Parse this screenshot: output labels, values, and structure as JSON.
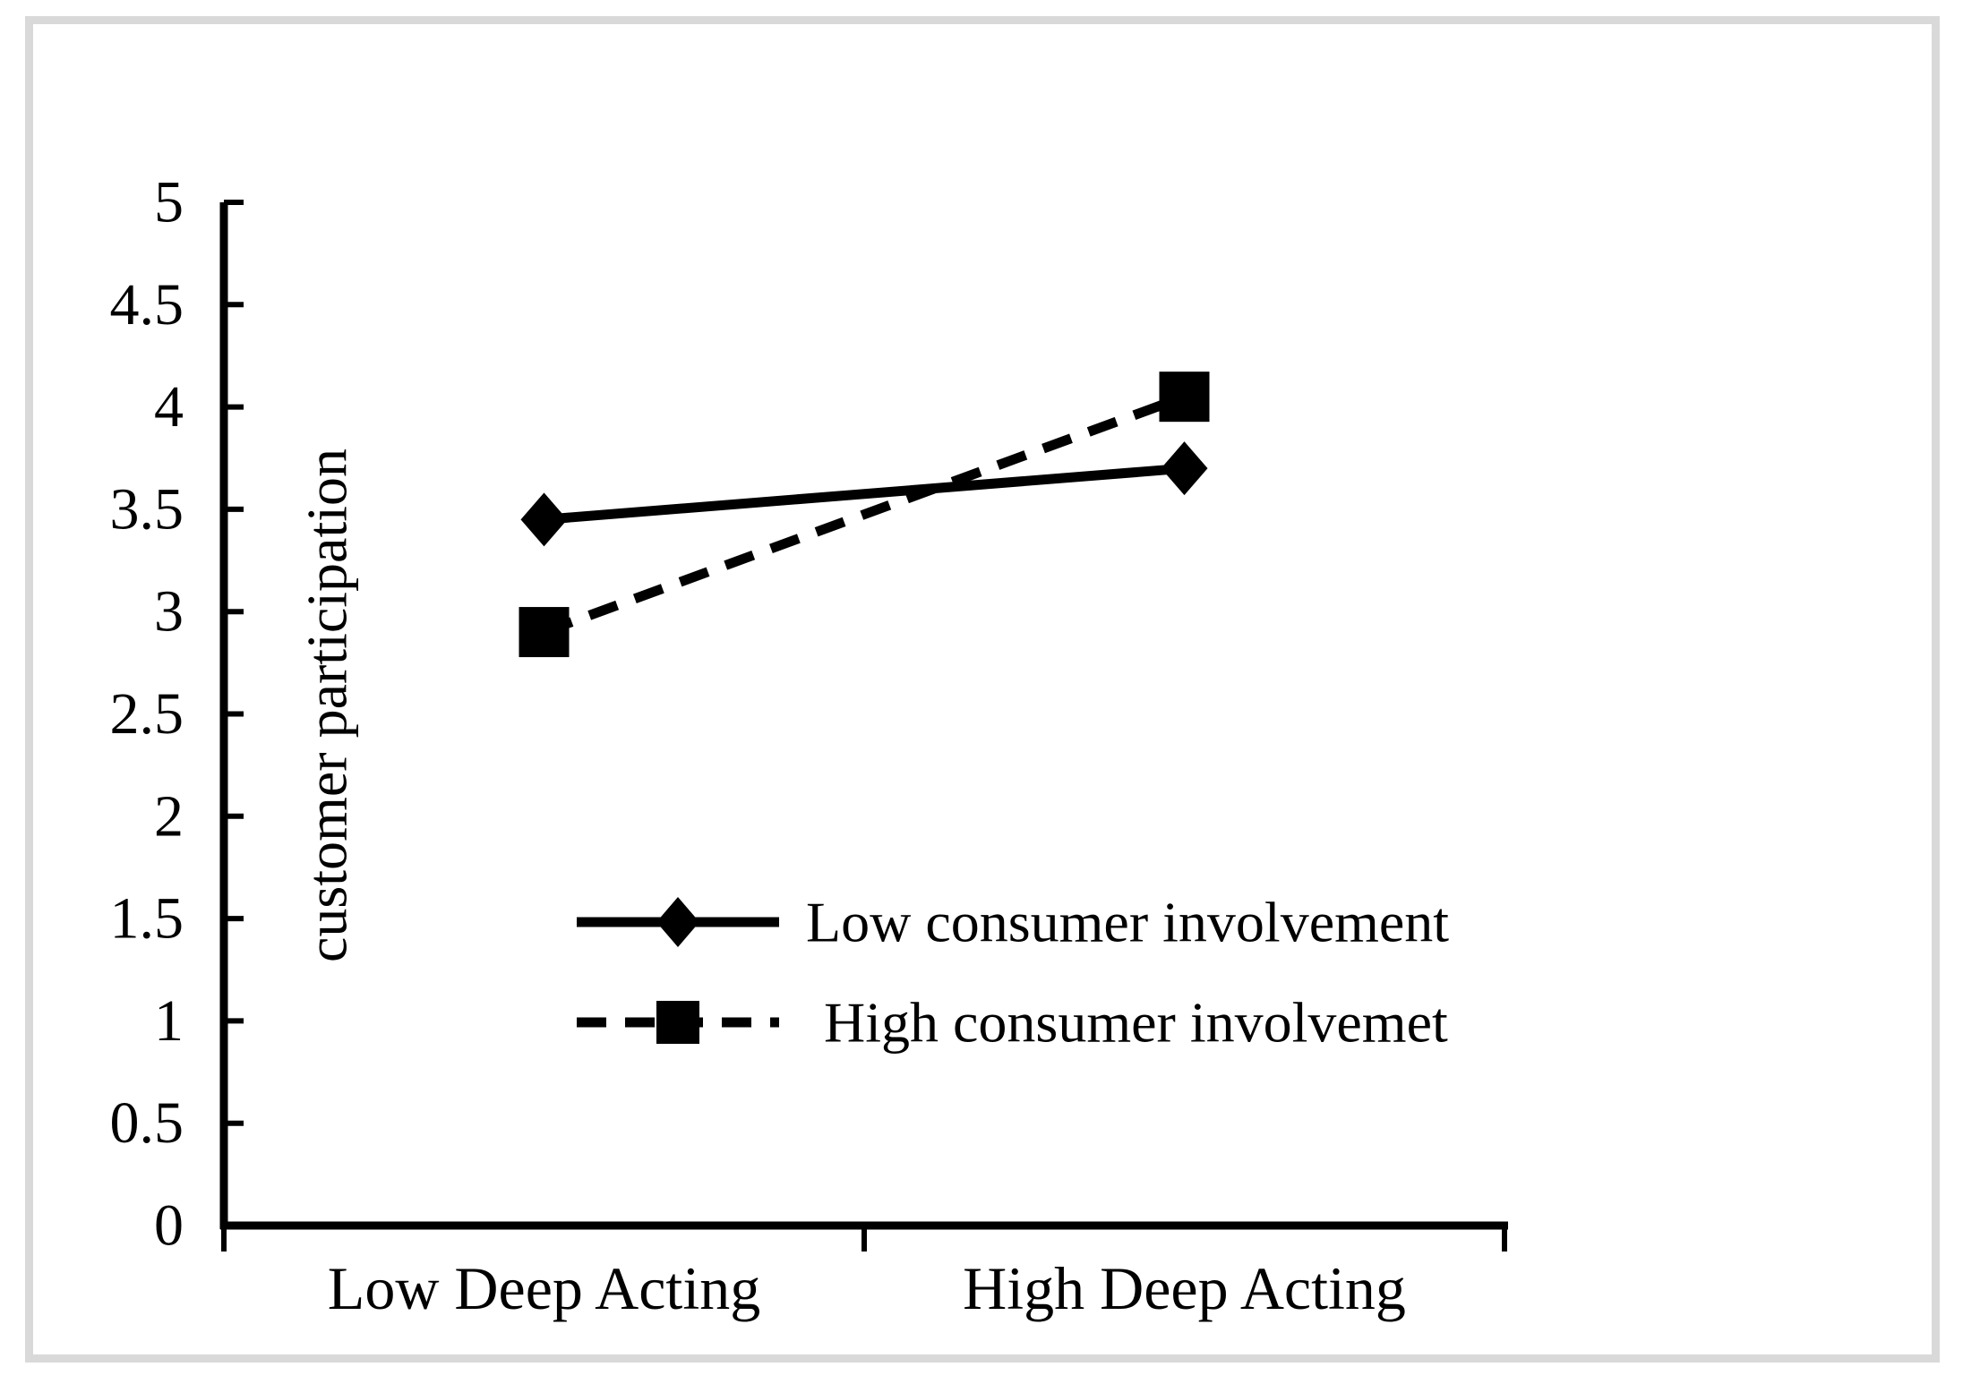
{
  "chart_data": {
    "type": "line",
    "title": "",
    "xlabel": "",
    "ylabel": "customer participation",
    "categories": [
      "Low Deep Acting",
      "High Deep Acting"
    ],
    "series": [
      {
        "name": "Low consumer involvement",
        "values": [
          3.45,
          3.7
        ],
        "marker": "diamond",
        "line_style": "solid"
      },
      {
        "name": "High consumer involvemet",
        "values": [
          2.9,
          4.05
        ],
        "marker": "square",
        "line_style": "dashed"
      }
    ],
    "ylim": [
      0,
      5
    ],
    "ytick_step": 0.5,
    "yticks": [
      "0",
      "0.5",
      "1",
      "1.5",
      "2",
      "2.5",
      "3",
      "3.5",
      "4",
      "4.5",
      "5"
    ],
    "grid": false,
    "legend_position": "inside-center-bottom",
    "colors": {
      "series": "#000000",
      "axis": "#000000",
      "text": "#000000",
      "frame_border": "#d9d9d9",
      "background": "#ffffff"
    }
  }
}
